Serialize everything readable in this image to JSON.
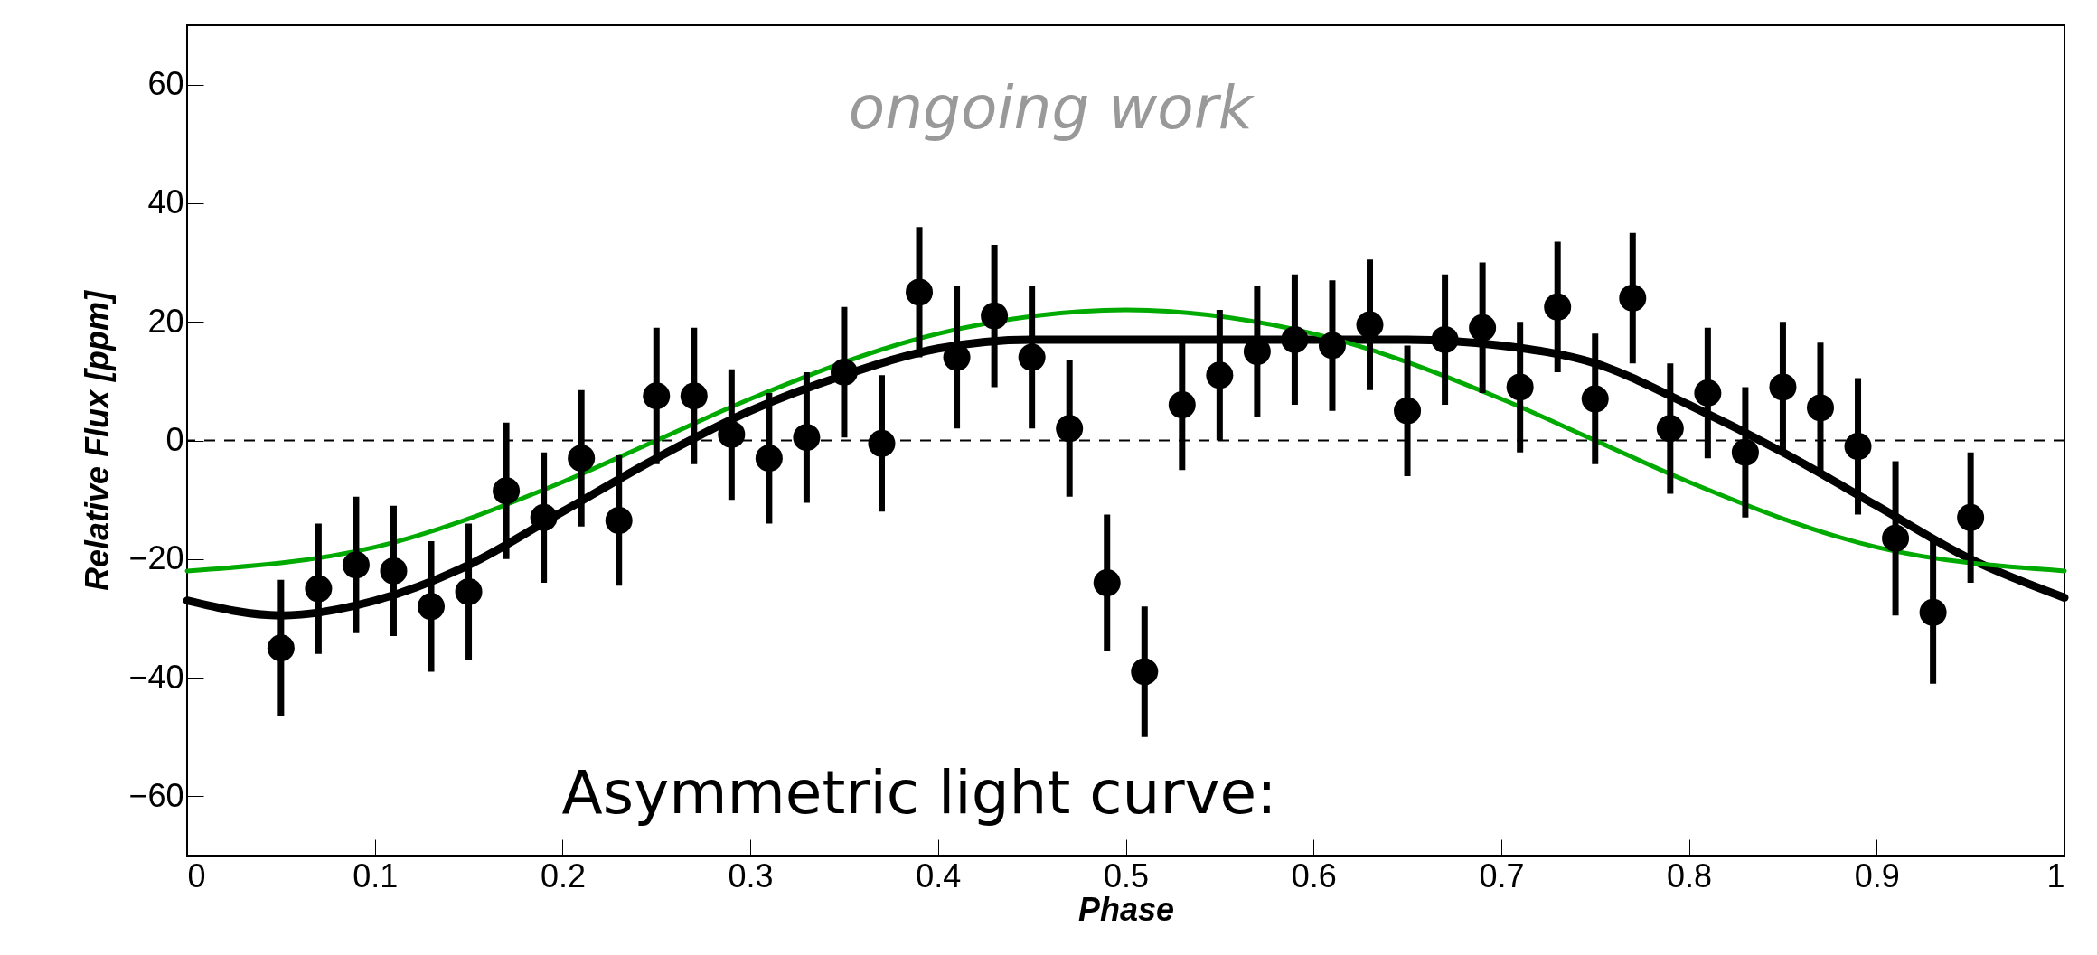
{
  "chart_data": {
    "type": "scatter",
    "xlabel": "Phase",
    "ylabel": "Relative Flux [ppm]",
    "annotations": [
      "ongoing work",
      "Asymmetric light curve:"
    ],
    "xlim": [
      0,
      1
    ],
    "xticks": [
      0,
      0.1,
      0.2,
      0.3,
      0.4,
      0.5,
      0.6,
      0.7,
      0.8,
      0.9,
      1
    ],
    "ylim": [
      -70,
      70
    ],
    "yticks": [
      -60,
      -40,
      -20,
      0,
      20,
      40,
      60
    ],
    "grid": false,
    "ref_lines": [
      {
        "axis": "y",
        "value": 0,
        "line_style": "dashed",
        "color": "#000000"
      }
    ],
    "series": [
      {
        "color": "#000000",
        "marker": "circle",
        "x": [
          0.05,
          0.07,
          0.09,
          0.11,
          0.13,
          0.15,
          0.17,
          0.19,
          0.21,
          0.23,
          0.25,
          0.27,
          0.29,
          0.31,
          0.33,
          0.35,
          0.37,
          0.39,
          0.41,
          0.43,
          0.45,
          0.47,
          0.49,
          0.51,
          0.53,
          0.55,
          0.57,
          0.59,
          0.61,
          0.63,
          0.65,
          0.67,
          0.69,
          0.71,
          0.73,
          0.75,
          0.77,
          0.79,
          0.81,
          0.83,
          0.85,
          0.87,
          0.89,
          0.91,
          0.93,
          0.95
        ],
        "values": [
          -35,
          -25,
          -21,
          -22,
          -28,
          -25.5,
          -8.5,
          -13,
          -3,
          -13.5,
          7.5,
          7.5,
          1,
          -3,
          0.5,
          11.5,
          -0.5,
          25,
          14,
          21,
          14,
          2,
          -24,
          -39,
          6,
          11,
          15,
          17,
          16,
          19.5,
          5,
          17,
          19,
          9,
          22.5,
          7,
          24,
          2,
          8,
          -2,
          9,
          5.5,
          -1,
          -16.5,
          -29,
          -13
        ],
        "errors": [
          11.5,
          11,
          11.5,
          11,
          11,
          11.5,
          11.5,
          11,
          11.5,
          11,
          11.5,
          11.5,
          11,
          11,
          11,
          11,
          11.5,
          11,
          12,
          12,
          12,
          11.5,
          11.5,
          11,
          11,
          11,
          11,
          11,
          11,
          11,
          11,
          11,
          11,
          11,
          11,
          11,
          11,
          11,
          11,
          11,
          11,
          11,
          11.5,
          13,
          12,
          11
        ]
      },
      {
        "type": "line",
        "color": "#000000",
        "x": [
          0,
          0.05,
          0.1,
          0.15,
          0.2,
          0.25,
          0.3,
          0.35,
          0.4,
          0.45,
          0.5,
          0.55,
          0.6,
          0.65,
          0.7,
          0.75,
          0.8,
          0.85,
          0.9,
          0.95,
          1
        ],
        "values": [
          -27,
          -29.5,
          -27,
          -21,
          -12,
          -3,
          5,
          11,
          15.5,
          17,
          17,
          17,
          17,
          17,
          16,
          13,
          6,
          -2,
          -11,
          -20,
          -26.5
        ]
      },
      {
        "type": "line",
        "color": "#00aa00",
        "x": [
          0,
          0.1,
          0.2,
          0.25,
          0.3,
          0.4,
          0.5,
          0.6,
          0.7,
          0.75,
          0.8,
          0.9,
          1
        ],
        "values": [
          -22,
          -18,
          -7,
          0,
          7,
          18,
          22,
          18,
          7,
          0,
          -7,
          -18,
          -22
        ]
      }
    ]
  }
}
